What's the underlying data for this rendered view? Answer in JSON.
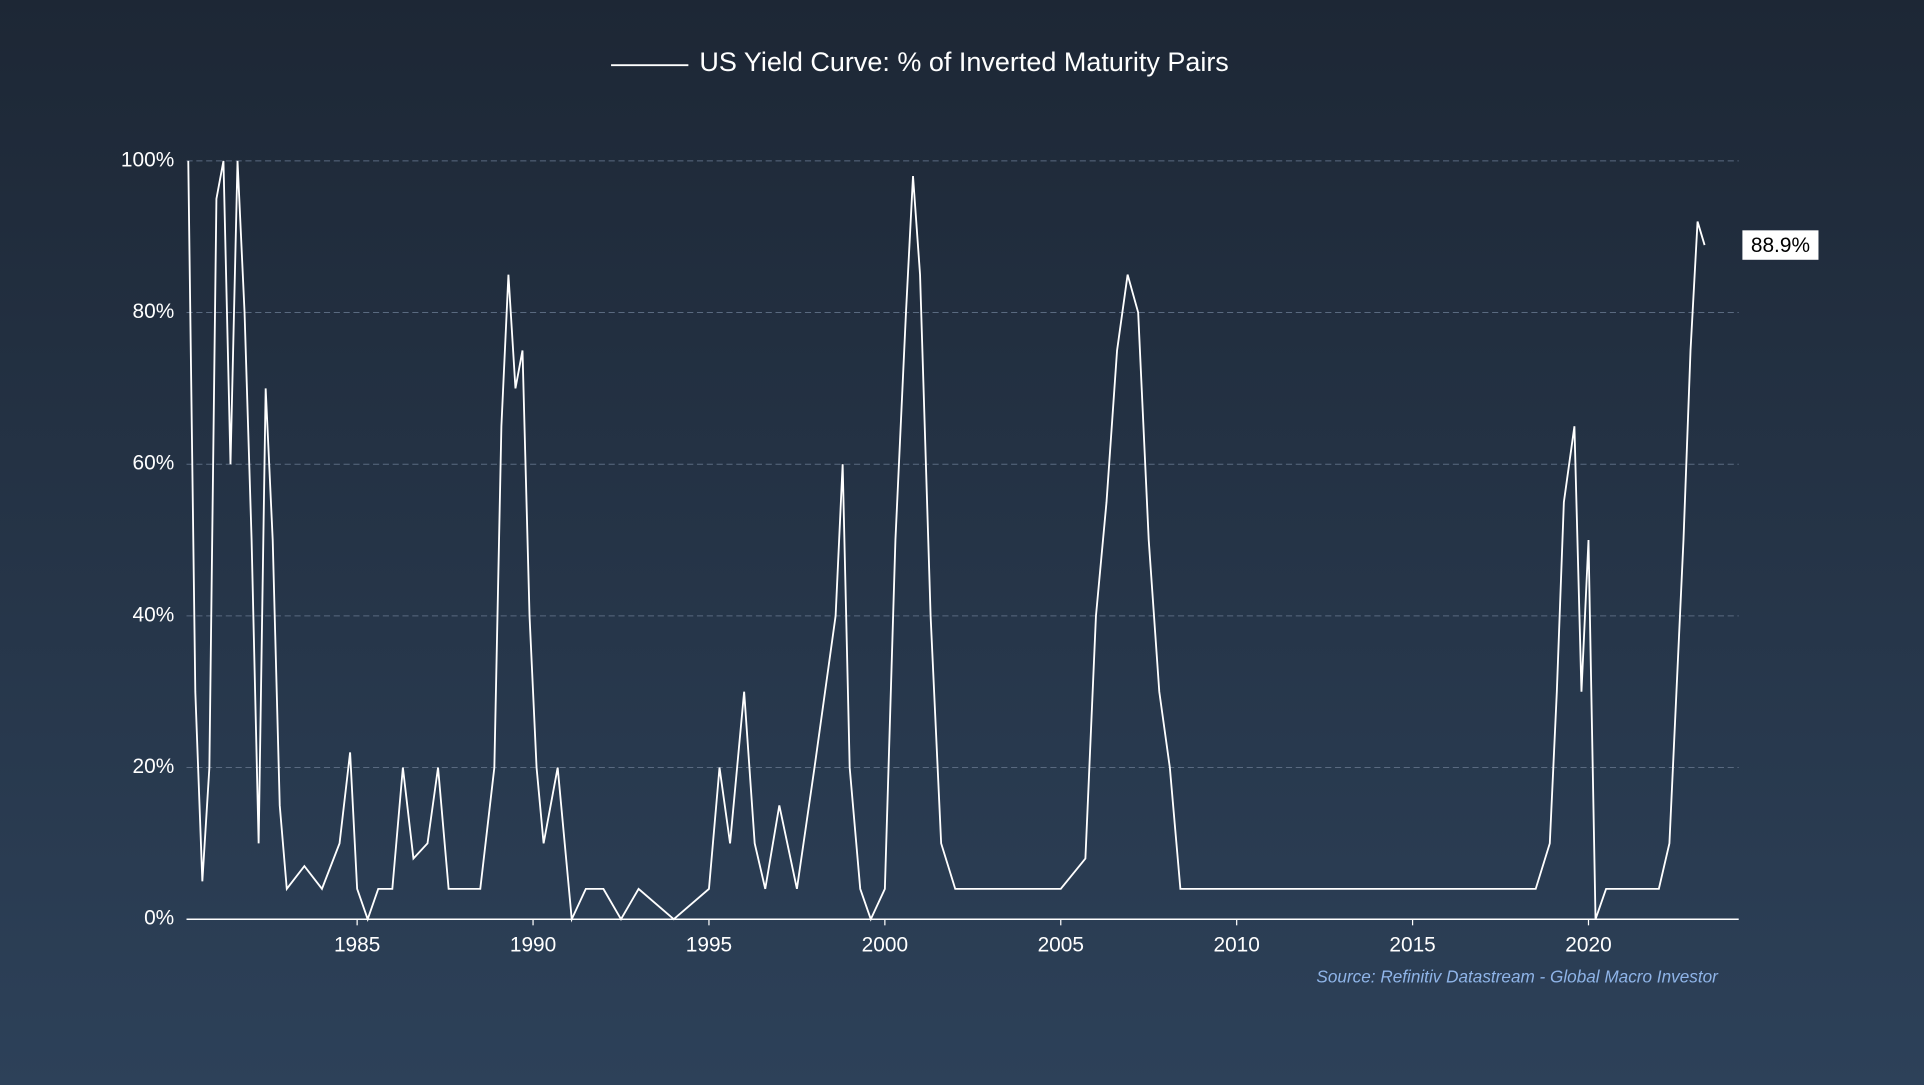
{
  "chart_data": {
    "type": "line",
    "title": "US Yield Curve: % of Inverted Maturity Pairs",
    "source": "Source: Refinitiv Datastream - Global Macro Investor",
    "last_value_label": "88.9%",
    "series": [
      {
        "name": "US Yield Curve: % of Inverted Maturity Pairs",
        "color": "#ffffff",
        "x": [
          1980.2,
          1980.4,
          1980.6,
          1980.8,
          1981.0,
          1981.2,
          1981.4,
          1981.6,
          1981.8,
          1982.0,
          1982.2,
          1982.4,
          1982.6,
          1982.8,
          1983.0,
          1983.5,
          1984.0,
          1984.5,
          1984.8,
          1985.0,
          1985.3,
          1985.6,
          1986.0,
          1986.3,
          1986.6,
          1987.0,
          1987.3,
          1987.6,
          1988.0,
          1988.5,
          1988.9,
          1989.1,
          1989.3,
          1989.5,
          1989.7,
          1989.9,
          1990.1,
          1990.3,
          1990.5,
          1990.7,
          1990.9,
          1991.1,
          1991.5,
          1992.0,
          1992.5,
          1993.0,
          1994.0,
          1995.0,
          1995.3,
          1995.6,
          1996.0,
          1996.3,
          1996.6,
          1997.0,
          1997.5,
          1998.0,
          1998.3,
          1998.6,
          1998.8,
          1999.0,
          1999.3,
          1999.6,
          2000.0,
          2000.3,
          2000.6,
          2000.8,
          2001.0,
          2001.3,
          2001.6,
          2002.0,
          2002.5,
          2003.0,
          2004.0,
          2005.0,
          2005.7,
          2006.0,
          2006.3,
          2006.6,
          2006.9,
          2007.2,
          2007.5,
          2007.8,
          2008.1,
          2008.4,
          2009.0,
          2010.0,
          2012.0,
          2014.0,
          2016.0,
          2018.5,
          2018.9,
          2019.1,
          2019.3,
          2019.6,
          2019.8,
          2020.0,
          2020.2,
          2020.5,
          2021.0,
          2022.0,
          2022.3,
          2022.5,
          2022.7,
          2022.9,
          2023.1,
          2023.3
        ],
        "values": [
          100,
          30,
          5,
          20,
          95,
          100,
          60,
          100,
          80,
          50,
          10,
          70,
          50,
          15,
          4,
          7,
          4,
          10,
          22,
          4,
          0,
          4,
          4,
          20,
          8,
          10,
          20,
          4,
          4,
          4,
          20,
          65,
          85,
          70,
          75,
          40,
          20,
          10,
          15,
          20,
          10,
          0,
          4,
          4,
          0,
          4,
          0,
          4,
          20,
          10,
          30,
          10,
          4,
          15,
          4,
          20,
          30,
          40,
          60,
          20,
          4,
          0,
          4,
          50,
          80,
          98,
          85,
          40,
          10,
          4,
          4,
          4,
          4,
          4,
          8,
          40,
          55,
          75,
          85,
          80,
          50,
          30,
          20,
          4,
          4,
          4,
          4,
          4,
          4,
          4,
          10,
          30,
          55,
          65,
          30,
          50,
          0,
          4,
          4,
          4,
          10,
          30,
          50,
          75,
          92,
          88.9
        ]
      }
    ],
    "xlim": [
      1980.15,
      2024.27
    ],
    "xticks": [
      1985,
      1990,
      1995,
      2000,
      2005,
      2010,
      2015,
      2020
    ],
    "ylim": [
      0,
      100
    ],
    "yticks": [
      {
        "value": 0,
        "label": "0%"
      },
      {
        "value": 20,
        "label": "20%"
      },
      {
        "value": 40,
        "label": "40%"
      },
      {
        "value": 60,
        "label": "60%"
      },
      {
        "value": 80,
        "label": "80%"
      },
      {
        "value": 100,
        "label": "100%"
      }
    ],
    "grid": true
  }
}
